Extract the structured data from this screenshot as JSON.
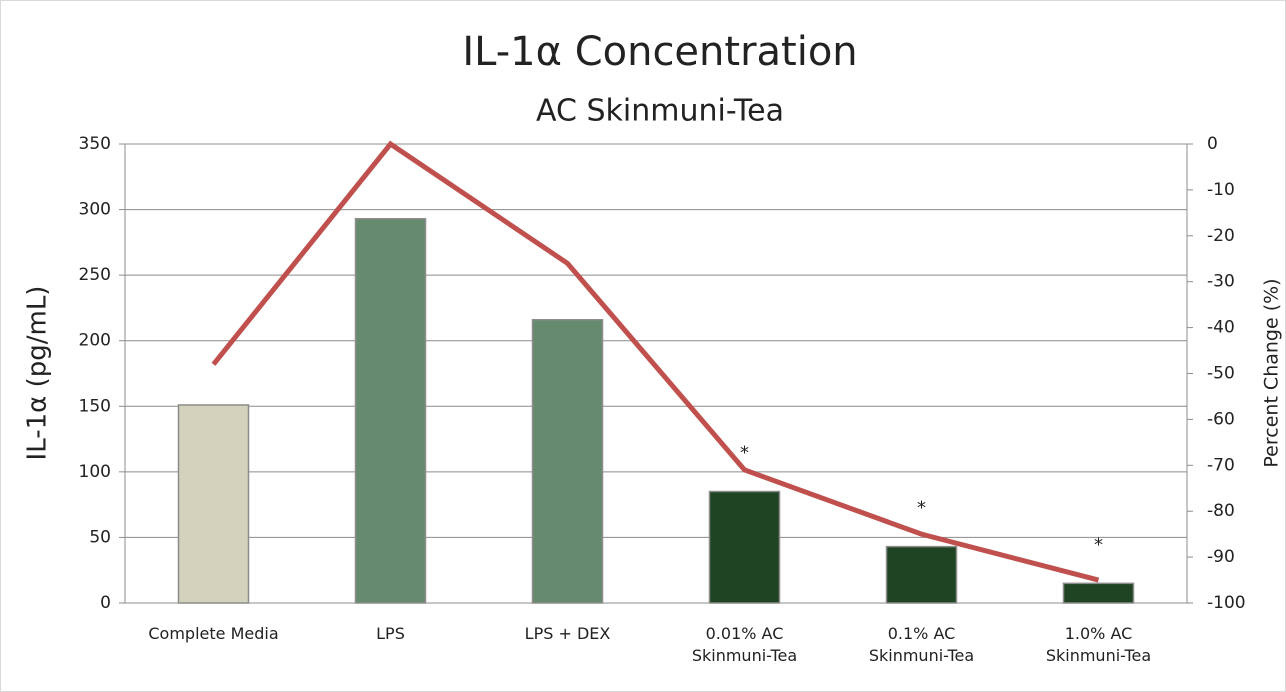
{
  "chart_data": {
    "type": "bar+line",
    "title": "IL-1α Concentration",
    "subtitle": "AC Skinmuni-Tea",
    "y_label": "IL-1α (pg/mL)",
    "y2_label": "Percent Change (%)",
    "categories": [
      "Complete Media",
      "LPS",
      "LPS + DEX",
      "0.01% AC\nSkinmuni-Tea",
      "0.1% AC\nSkinmuni-Tea",
      "1.0% AC\nSkinmuni-Tea"
    ],
    "series": [
      {
        "type": "bar",
        "colors": [
          "#d3d3bd",
          "#668a6e",
          "#668a6e",
          "#1f4423",
          "#1f4423",
          "#1f4423"
        ],
        "values": [
          151,
          293,
          216,
          85,
          43,
          15
        ]
      },
      {
        "type": "line",
        "axis": "y2",
        "color": "#c0504d",
        "values": [
          -48,
          0,
          -26,
          -71,
          -85,
          -95
        ]
      }
    ],
    "annotations": [
      null,
      null,
      null,
      "*",
      "*",
      "*"
    ],
    "ylim": [
      0,
      350
    ],
    "yticks": [
      0,
      50,
      100,
      150,
      200,
      250,
      300,
      350
    ],
    "y2lim": [
      -100,
      0
    ],
    "y2ticks": [
      -100,
      -90,
      -80,
      -70,
      -60,
      -50,
      -40,
      -30,
      -20,
      -10,
      0
    ],
    "grid": true
  }
}
